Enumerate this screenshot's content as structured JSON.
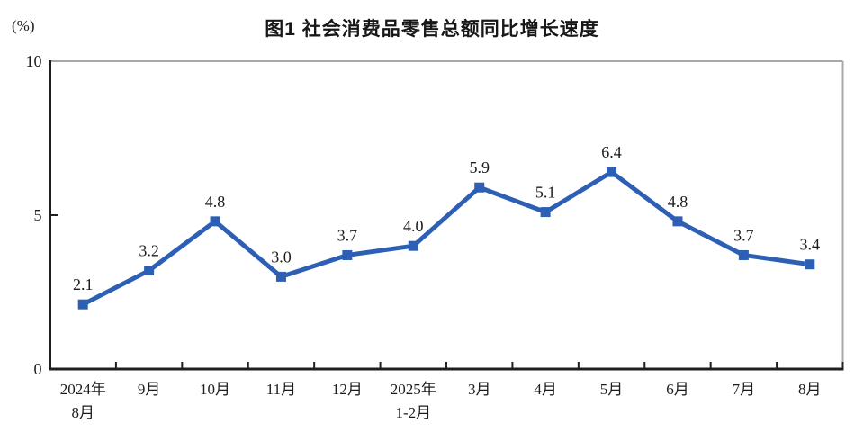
{
  "figure": {
    "unit_label": "(%)",
    "title": "图1 社会消费品零售总额同比增长速度"
  },
  "chart_data": {
    "type": "line",
    "title": "图1 社会消费品零售总额同比增长速度",
    "unit": "%",
    "categories": [
      "2024年\n8月",
      "9月",
      "10月",
      "11月",
      "12月",
      "2025年\n1-2月",
      "3月",
      "4月",
      "5月",
      "6月",
      "7月",
      "8月"
    ],
    "values": [
      2.1,
      3.2,
      4.8,
      3.0,
      3.7,
      4.0,
      5.9,
      5.1,
      6.4,
      4.8,
      3.7,
      3.4
    ],
    "value_labels": [
      "2.1",
      "3.2",
      "4.8",
      "3.0",
      "3.7",
      "4.0",
      "5.9",
      "5.1",
      "6.4",
      "4.8",
      "3.7",
      "3.4"
    ],
    "ylim": [
      0,
      10
    ],
    "yticks": [
      0,
      5,
      10
    ],
    "grid": false,
    "legend": false,
    "marker": "square",
    "colors": {
      "line": "#2d5fb4",
      "marker": "#2d5fb4",
      "axis": "#1f1f1f",
      "frame": "#a8a8a8",
      "text": "#1c1c1c"
    }
  }
}
